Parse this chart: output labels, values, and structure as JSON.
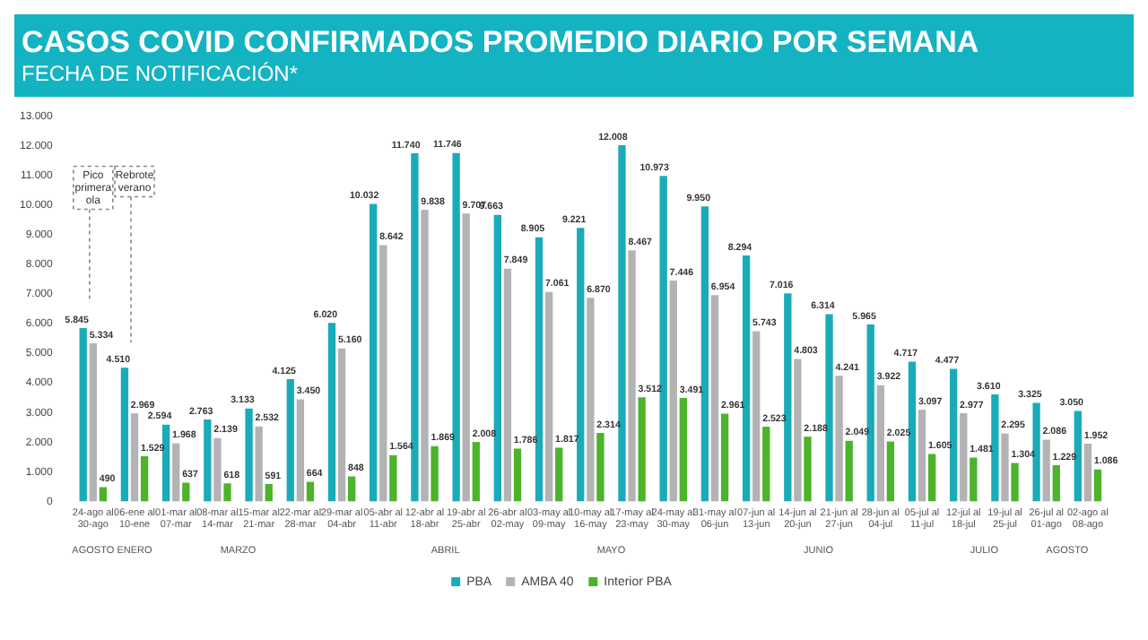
{
  "chart_data": {
    "type": "bar",
    "title": "CASOS COVID CONFIRMADOS PROMEDIO DIARIO POR SEMANA",
    "subtitle": "FECHA DE NOTIFICACIÓN*",
    "categories": [
      "24-ago al 30-ago",
      "06-ene al 10-ene",
      "01-mar al 07-mar",
      "08-mar al 14-mar",
      "15-mar al 21-mar",
      "22-mar al 28-mar",
      "29-mar al 04-abr",
      "05-abr al 11-abr",
      "12-abr al 18-abr",
      "19-abr al 25-abr",
      "26-abr al 02-may",
      "03-may al 09-may",
      "10-may al 16-may",
      "17-may al 23-may",
      "24-may al 30-may",
      "31-may al 06-jun",
      "07-jun al 13-jun",
      "14-jun al 20-jun",
      "21-jun al 27-jun",
      "28-jun al 04-jul",
      "05-jul al 11-jul",
      "12-jul al 18-jul",
      "19-jul al 25-jul",
      "26-jul al 01-ago",
      "02-ago al 08-ago"
    ],
    "series": [
      {
        "name": "PBA",
        "color": "#1aabb8",
        "values": [
          5845,
          4510,
          2594,
          2763,
          3133,
          4125,
          6020,
          10032,
          11740,
          11746,
          9663,
          8905,
          9221,
          12008,
          10973,
          9950,
          8294,
          7016,
          6314,
          5965,
          4717,
          4477,
          3610,
          3325,
          3050
        ],
        "value_labels": [
          "5.845",
          "4.510",
          "2.594",
          "2.763",
          "3.133",
          "4.125",
          "6.020",
          "10.032",
          "11.740",
          "11.746",
          "9.663",
          "8.905",
          "9.221",
          "12.008",
          "10.973",
          "9.950",
          "8.294",
          "7.016",
          "6.314",
          "5.965",
          "4.717",
          "4.477",
          "3.610",
          "3.325",
          "3.050"
        ]
      },
      {
        "name": "AMBA 40",
        "color": "#b3b3b3",
        "values": [
          5334,
          2969,
          1968,
          2139,
          2532,
          3450,
          5160,
          8642,
          9838,
          9707,
          7849,
          7061,
          6870,
          8467,
          7446,
          6954,
          5743,
          4803,
          4241,
          3922,
          3097,
          2977,
          2295,
          2086,
          1952
        ],
        "value_labels": [
          "5.334",
          "2.969",
          "1.968",
          "2.139",
          "2.532",
          "3.450",
          "5.160",
          "8.642",
          "9.838",
          "9.707",
          "7.849",
          "7.061",
          "6.870",
          "8.467",
          "7.446",
          "6.954",
          "5.743",
          "4.803",
          "4.241",
          "3.922",
          "3.097",
          "2.977",
          "2.295",
          "2.086",
          "1.952"
        ]
      },
      {
        "name": "Interior PBA",
        "color": "#4cb32a",
        "values": [
          490,
          1529,
          637,
          618,
          591,
          664,
          848,
          1564,
          1869,
          2008,
          1786,
          1817,
          2314,
          3512,
          3491,
          2961,
          2523,
          2188,
          2049,
          2025,
          1605,
          1481,
          1304,
          1229,
          1086
        ],
        "value_labels": [
          "490",
          "1.529",
          "637",
          "618",
          "591",
          "664",
          "848",
          "1.564",
          "1.869",
          "2.008",
          "1.786",
          "1.817",
          "2.314",
          "3.512",
          "3.491",
          "2.961",
          "2.523",
          "2.188",
          "2.049",
          "2.025",
          "1.605",
          "1.481",
          "1.304",
          "1.229",
          "1.086"
        ]
      }
    ],
    "ylim": [
      0,
      13000
    ],
    "yticks": [
      0,
      {
        "value": 1000,
        "label": "1.000"
      },
      {
        "value": 2000,
        "label": "2.000"
      },
      {
        "value": 3000,
        "label": "3.000"
      },
      {
        "value": 4000,
        "label": "4.000"
      },
      {
        "value": 5000,
        "label": "5.000"
      },
      {
        "value": 6000,
        "label": "6.000"
      },
      {
        "value": 7000,
        "label": "7.000"
      },
      {
        "value": 8000,
        "label": "8.000"
      },
      {
        "value": 9000,
        "label": "9.000"
      },
      {
        "value": 10000,
        "label": "10.000"
      },
      {
        "value": 11000,
        "label": "11.000"
      },
      {
        "value": 12000,
        "label": "12.000"
      },
      {
        "value": 13000,
        "label": "13.000"
      }
    ],
    "legend": "bottom",
    "annotations": [
      "Pico primera ola",
      "Rebrote verano",
      "AGOSTO",
      "ENERO",
      "MARZO",
      "ABRIL",
      "MAYO",
      "JUNIO",
      "JULIO",
      "AGOSTO"
    ]
  }
}
